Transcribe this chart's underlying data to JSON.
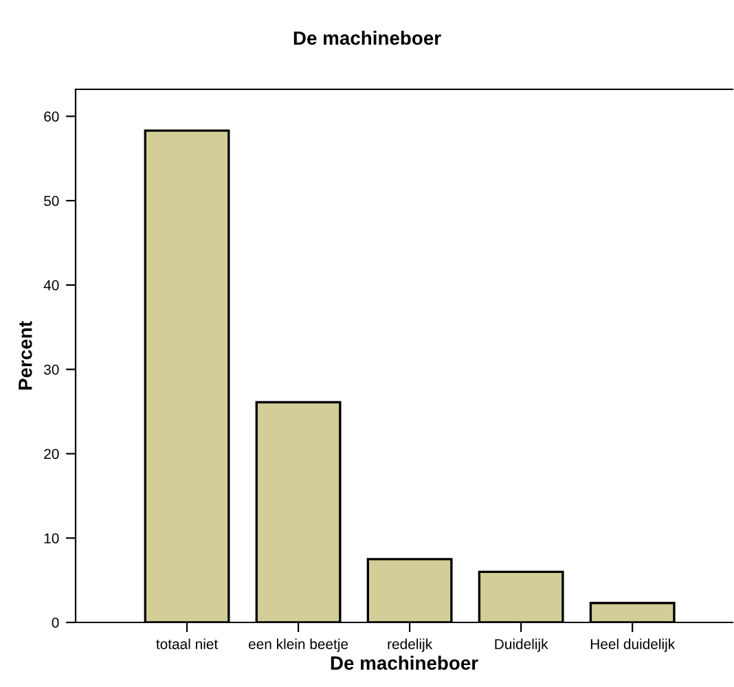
{
  "chart_data": {
    "type": "bar",
    "title": "De machineboer",
    "xlabel": "De machineboer",
    "ylabel": "Percent",
    "categories": [
      "totaal niet",
      "een klein beetje",
      "redelijk",
      "Duidelijk",
      "Heel duidelijk"
    ],
    "values": [
      58.3,
      26.1,
      7.5,
      6.0,
      2.3
    ],
    "color": "#d3ce97",
    "ylim": [
      0,
      63.2
    ],
    "yticks": [
      0,
      10,
      20,
      30,
      40,
      50,
      60
    ],
    "grid": false
  }
}
